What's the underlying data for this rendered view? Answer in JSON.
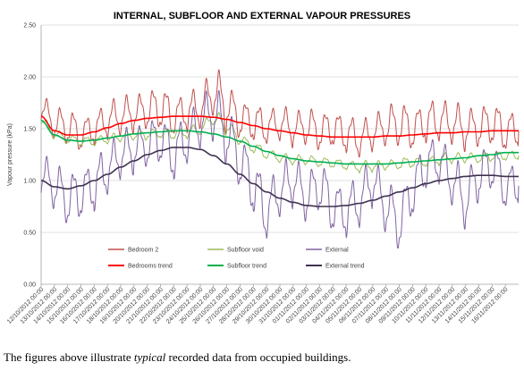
{
  "caption": {
    "before": "The figures above illustrate ",
    "emphasis": "typical",
    "after": " recorded data from occupied buildings."
  },
  "chart_data": {
    "type": "line",
    "title": "INTERNAL, SUBFLOOR AND EXTERNAL VAPOUR PRESSURES",
    "xlabel": "",
    "ylabel": "Vapour pressure (kPa)",
    "ylim": [
      0,
      2.5
    ],
    "y_ticks": [
      "0.00",
      "0.50",
      "1.00",
      "1.50",
      "2.00",
      "2.50"
    ],
    "grid": "horizontal",
    "legend_position": "bottom-inside",
    "categories": [
      "12/10/2012 00:00",
      "13/10/2012 00:00",
      "14/10/2012 00:00",
      "15/10/2012 00:00",
      "16/10/2012 00:00",
      "17/10/2012 00:00",
      "18/10/2012 00:00",
      "19/10/2012 00:00",
      "20/10/2012 00:00",
      "21/10/2012 00:00",
      "22/10/2012 00:00",
      "23/10/2012 00:00",
      "24/10/2012 00:00",
      "25/10/2012 00:00",
      "26/10/2012 00:00",
      "27/10/2012 00:00",
      "28/10/2012 00:00",
      "29/10/2012 00:00",
      "30/10/2012 00:00",
      "31/10/2012 00:00",
      "01/11/2012 00:00",
      "02/11/2012 00:00",
      "03/11/2012 00:00",
      "04/11/2012 00:00",
      "05/11/2012 00:00",
      "06/11/2012 00:00",
      "07/11/2012 00:00",
      "08/11/2012 00:00",
      "09/11/2012 00:00",
      "10/11/2012 00:00",
      "11/11/2012 00:00",
      "12/11/2012 00:00",
      "13/11/2012 00:00",
      "14/11/2012 00:00",
      "15/11/2012 00:00",
      "16/11/2012 00:00"
    ],
    "series": [
      {
        "name": "Bedroom 2",
        "color": "#c0504d",
        "width": 1,
        "values": [
          1.7,
          1.55,
          1.52,
          1.45,
          1.5,
          1.58,
          1.62,
          1.65,
          1.68,
          1.7,
          1.62,
          1.66,
          1.7,
          1.85,
          1.72,
          1.6,
          1.56,
          1.52,
          1.55,
          1.5,
          1.52,
          1.48,
          1.5,
          1.45,
          1.4,
          1.46,
          1.52,
          1.55,
          1.5,
          1.56,
          1.58,
          1.55,
          1.5,
          1.52,
          1.55,
          1.48
        ],
        "amplitudes": [
          0.12,
          0.14,
          0.15,
          0.13,
          0.14,
          0.16,
          0.16,
          0.15,
          0.17,
          0.18,
          0.15,
          0.17,
          0.18,
          0.22,
          0.17,
          0.15,
          0.16,
          0.14,
          0.15,
          0.14,
          0.16,
          0.15,
          0.15,
          0.16,
          0.15,
          0.15,
          0.18,
          0.18,
          0.16,
          0.18,
          0.17,
          0.18,
          0.16,
          0.17,
          0.18,
          0.16
        ]
      },
      {
        "name": "Subfloor void",
        "color": "#9bbb59",
        "width": 1,
        "values": [
          1.58,
          1.45,
          1.4,
          1.38,
          1.38,
          1.4,
          1.42,
          1.44,
          1.45,
          1.46,
          1.45,
          1.46,
          1.5,
          1.6,
          1.52,
          1.4,
          1.32,
          1.26,
          1.22,
          1.2,
          1.2,
          1.18,
          1.17,
          1.15,
          1.13,
          1.14,
          1.15,
          1.16,
          1.18,
          1.18,
          1.2,
          1.22,
          1.22,
          1.22,
          1.24,
          1.24
        ],
        "amplitudes": [
          0.04,
          0.04,
          0.04,
          0.04,
          0.04,
          0.04,
          0.04,
          0.05,
          0.04,
          0.05,
          0.04,
          0.05,
          0.05,
          0.07,
          0.05,
          0.04,
          0.05,
          0.04,
          0.04,
          0.04,
          0.04,
          0.04,
          0.04,
          0.04,
          0.05,
          0.04,
          0.04,
          0.05,
          0.04,
          0.04,
          0.05,
          0.04,
          0.04,
          0.05,
          0.04,
          0.04
        ]
      },
      {
        "name": "External",
        "color": "#8064a2",
        "width": 1,
        "values": [
          1.05,
          0.95,
          0.82,
          0.88,
          0.95,
          1.1,
          1.25,
          1.3,
          1.35,
          1.4,
          1.25,
          1.4,
          1.55,
          1.65,
          1.45,
          1.2,
          0.95,
          0.7,
          0.9,
          1.0,
          0.85,
          0.95,
          0.75,
          0.7,
          0.8,
          1.0,
          0.75,
          0.6,
          0.9,
          1.15,
          1.2,
          1.0,
          0.8,
          1.05,
          1.15,
          0.95
        ],
        "amplitudes": [
          0.18,
          0.2,
          0.22,
          0.2,
          0.22,
          0.2,
          0.2,
          0.18,
          0.2,
          0.2,
          0.22,
          0.2,
          0.22,
          0.24,
          0.22,
          0.22,
          0.24,
          0.22,
          0.22,
          0.2,
          0.2,
          0.22,
          0.2,
          0.22,
          0.22,
          0.2,
          0.22,
          0.22,
          0.22,
          0.2,
          0.2,
          0.22,
          0.22,
          0.2,
          0.2,
          0.18
        ]
      },
      {
        "name": "Bedrooms trend",
        "color": "#ff0000",
        "width": 1.6,
        "values": [
          1.62,
          1.48,
          1.44,
          1.44,
          1.47,
          1.51,
          1.55,
          1.58,
          1.6,
          1.61,
          1.62,
          1.62,
          1.62,
          1.61,
          1.59,
          1.56,
          1.53,
          1.5,
          1.48,
          1.46,
          1.44,
          1.43,
          1.42,
          1.42,
          1.42,
          1.42,
          1.43,
          1.43,
          1.44,
          1.45,
          1.46,
          1.46,
          1.47,
          1.47,
          1.48,
          1.48
        ]
      },
      {
        "name": "Subfloor trend",
        "color": "#00b050",
        "width": 1.6,
        "values": [
          1.58,
          1.44,
          1.39,
          1.38,
          1.39,
          1.41,
          1.43,
          1.45,
          1.46,
          1.47,
          1.48,
          1.48,
          1.47,
          1.45,
          1.42,
          1.38,
          1.33,
          1.28,
          1.24,
          1.21,
          1.19,
          1.18,
          1.17,
          1.16,
          1.16,
          1.16,
          1.16,
          1.17,
          1.18,
          1.19,
          1.2,
          1.21,
          1.22,
          1.24,
          1.25,
          1.27
        ]
      },
      {
        "name": "External trend",
        "color": "#403151",
        "width": 1.6,
        "values": [
          1.0,
          0.94,
          0.92,
          0.95,
          1.0,
          1.06,
          1.13,
          1.19,
          1.25,
          1.29,
          1.32,
          1.32,
          1.3,
          1.24,
          1.16,
          1.06,
          0.97,
          0.89,
          0.83,
          0.79,
          0.76,
          0.75,
          0.75,
          0.76,
          0.78,
          0.81,
          0.85,
          0.89,
          0.93,
          0.97,
          1.0,
          1.02,
          1.04,
          1.05,
          1.05,
          1.04
        ]
      }
    ]
  }
}
